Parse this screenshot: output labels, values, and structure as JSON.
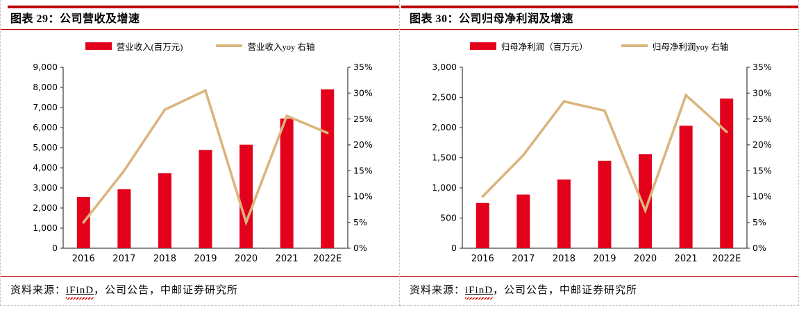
{
  "theme": {
    "rule_red": "#C00000",
    "bar_red": "#E3001B",
    "line_tan": "#DBB57E",
    "axis_color": "#454545",
    "text_color": "#000000",
    "dash_border": "#c3c3c3",
    "background": "#ffffff"
  },
  "panels": [
    {
      "title": "图表 29：公司营收及增速",
      "legend": [
        {
          "swatch": "bar",
          "label": "营业收入(百万元)"
        },
        {
          "swatch": "line",
          "label": "营业收入yoy 右轴"
        }
      ],
      "source": {
        "label": "资料来源：",
        "link_text": "iFinD",
        "rest": "，公司公告，中邮证券研究所"
      }
    },
    {
      "title": "图表 30：公司归母净利润及增速",
      "legend": [
        {
          "swatch": "bar",
          "label": "归母净利润（百万元）"
        },
        {
          "swatch": "line",
          "label": "归母净利润yoy 右轴"
        }
      ],
      "source": {
        "label": "资料来源：",
        "link_text": "iFinD",
        "rest": "，公司公告，中邮证券研究所"
      }
    }
  ],
  "chart_data": [
    {
      "type": "bar",
      "title": "公司营收及增速",
      "categories": [
        "2016",
        "2017",
        "2018",
        "2019",
        "2020",
        "2021",
        "2022E"
      ],
      "series": [
        {
          "name": "营业收入(百万元)",
          "type": "bar",
          "axis": "left",
          "values": [
            2550,
            2930,
            3730,
            4890,
            5150,
            6450,
            7900
          ]
        },
        {
          "name": "营业收入yoy 右轴",
          "type": "line",
          "axis": "right",
          "values": [
            5,
            15,
            26.8,
            30.5,
            5,
            25.6,
            22.3
          ]
        }
      ],
      "left_axis": {
        "min": 0,
        "max": 9000,
        "step": 1000,
        "format": "thousands"
      },
      "right_axis": {
        "min": 0,
        "max": 35,
        "step": 5,
        "format": "percent"
      },
      "grid": false,
      "legend_position": "top"
    },
    {
      "type": "bar",
      "title": "公司归母净利润及增速",
      "categories": [
        "2016",
        "2017",
        "2018",
        "2019",
        "2020",
        "2021",
        "2022E"
      ],
      "series": [
        {
          "name": "归母净利润（百万元）",
          "type": "bar",
          "axis": "left",
          "values": [
            750,
            890,
            1140,
            1450,
            1560,
            2030,
            2480
          ]
        },
        {
          "name": "归母净利润yoy 右轴",
          "type": "line",
          "axis": "right",
          "values": [
            10,
            18,
            28.4,
            26.6,
            7.3,
            29.6,
            22.5
          ]
        }
      ],
      "left_axis": {
        "min": 0,
        "max": 3000,
        "step": 500,
        "format": "thousands"
      },
      "right_axis": {
        "min": 0,
        "max": 35,
        "step": 5,
        "format": "percent"
      },
      "grid": false,
      "legend_position": "top"
    }
  ]
}
